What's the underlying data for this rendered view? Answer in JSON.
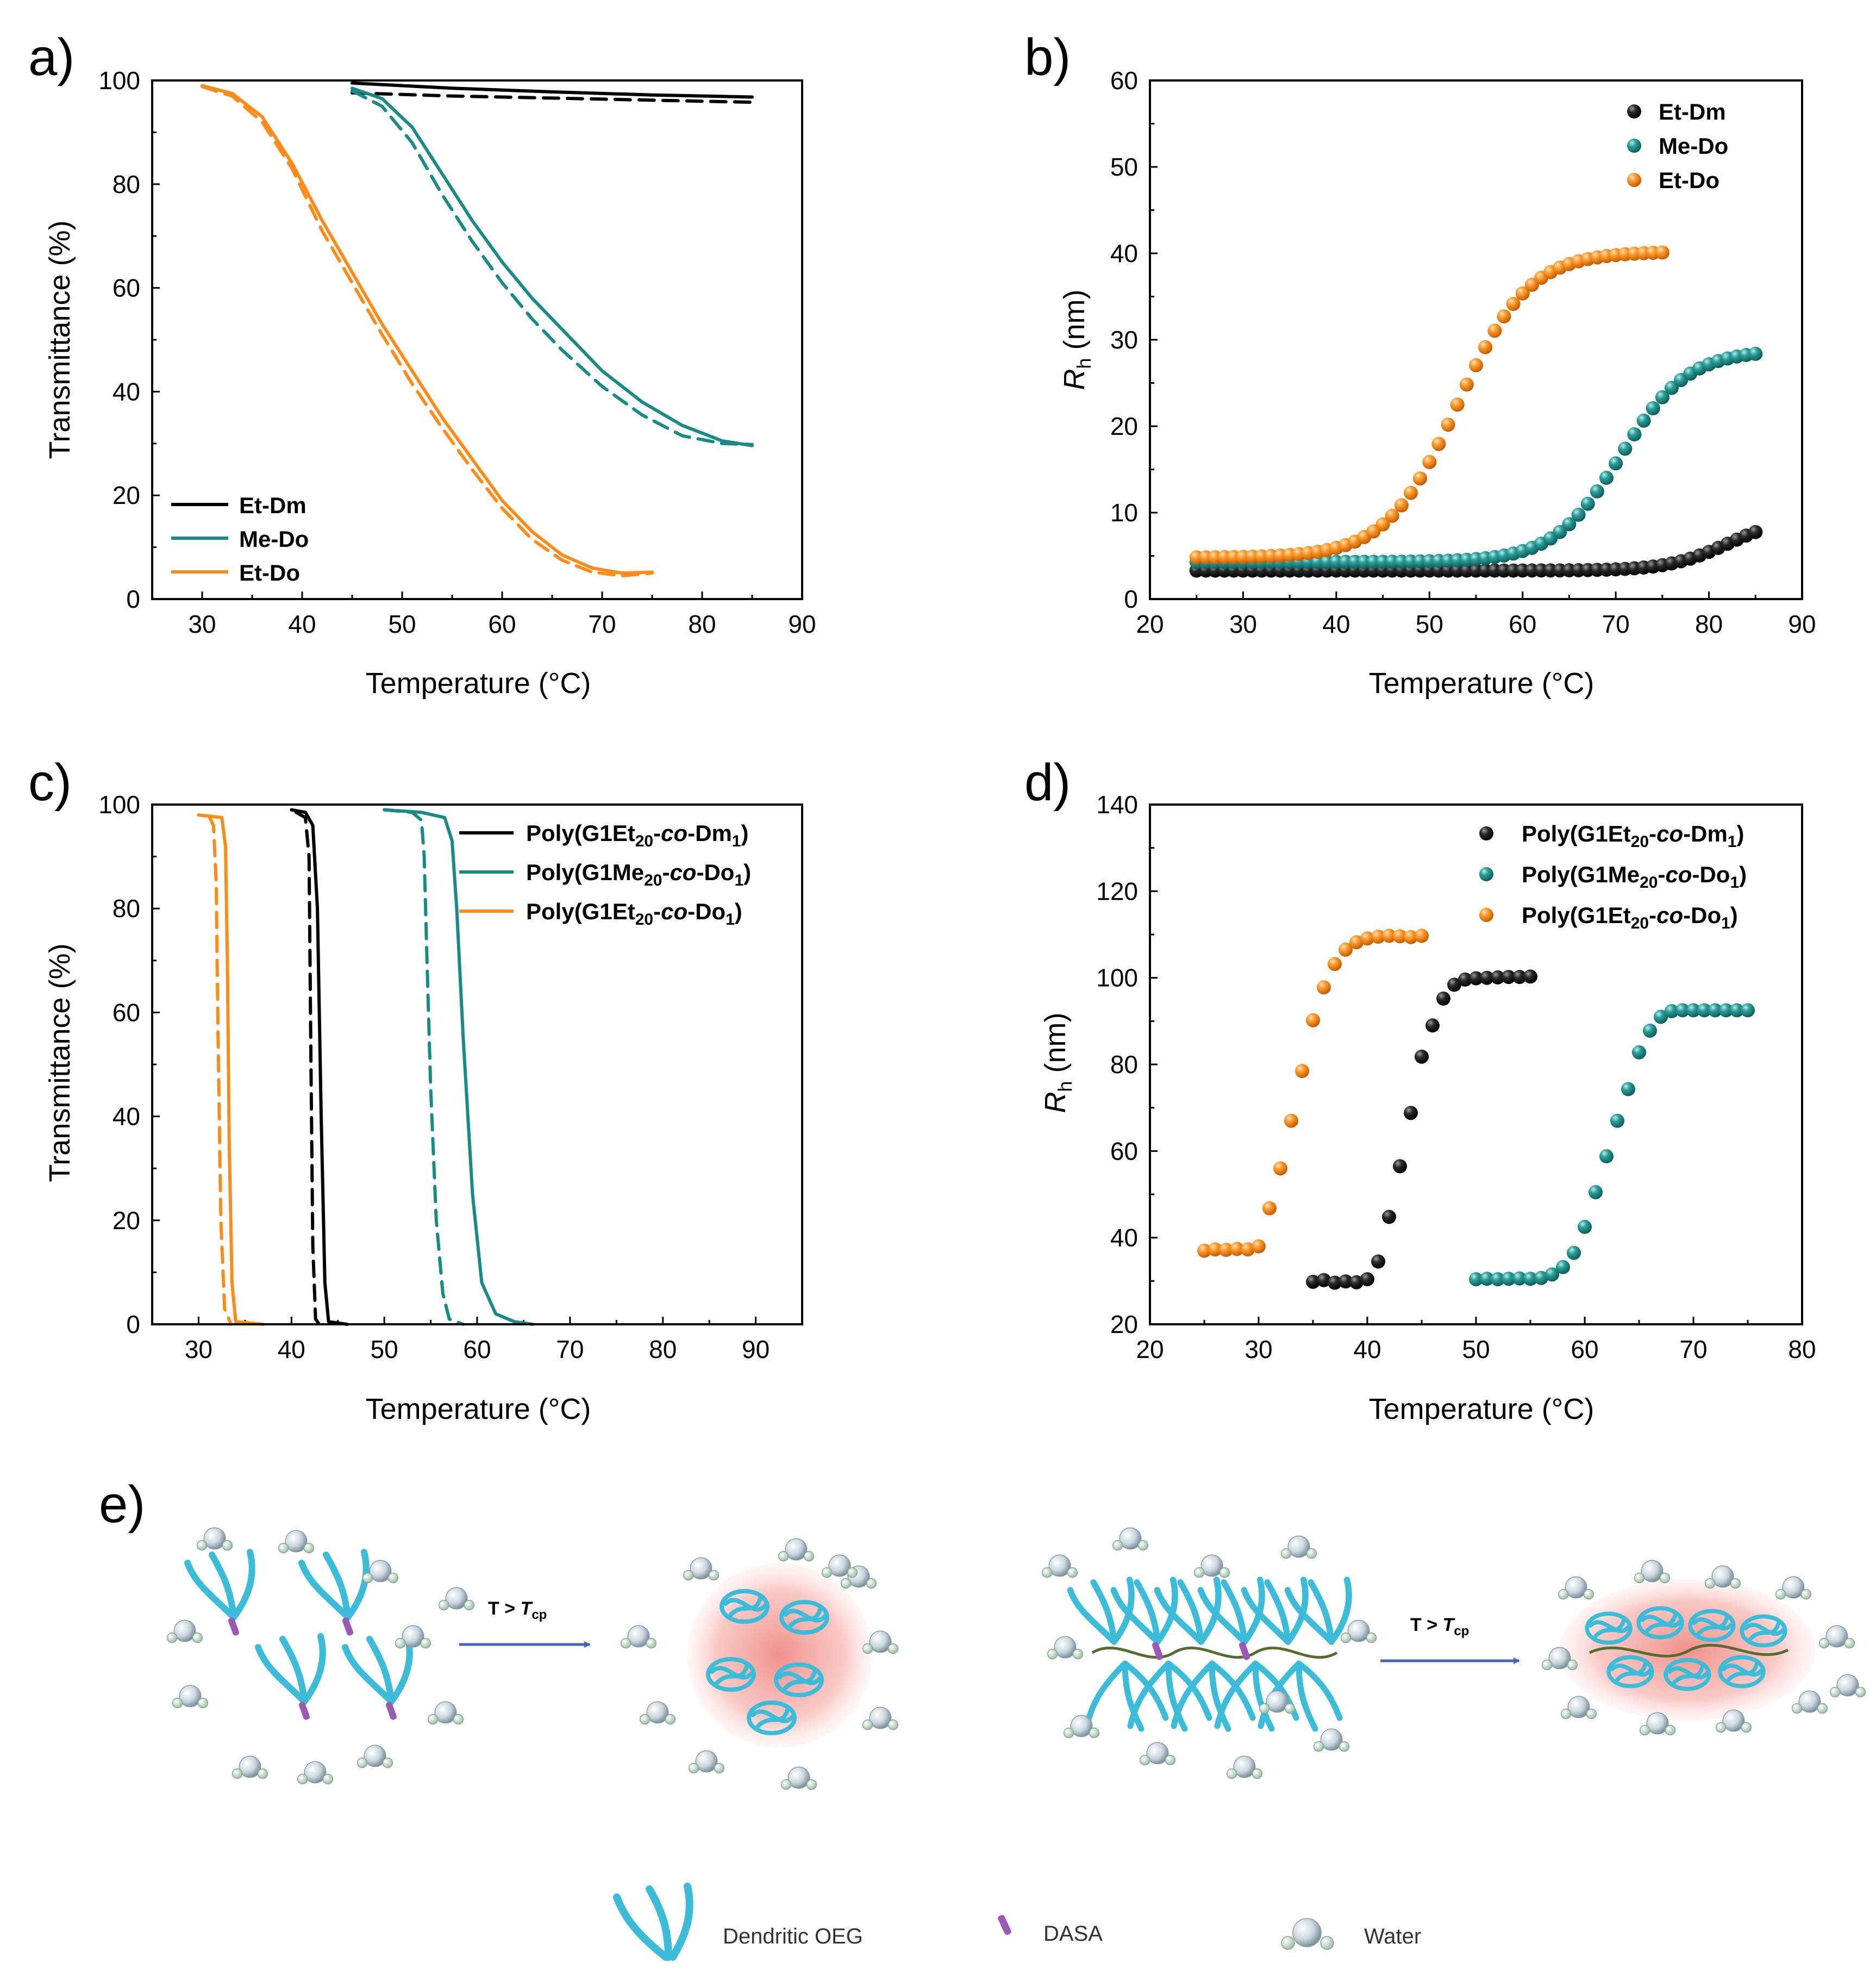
{
  "colors": {
    "black": "#000000",
    "teal": "#1a8a86",
    "orange": "#ff8c1a",
    "blue_arrow": "#4a62b8",
    "cyan": "#3cbcd8",
    "dasa": "#9b59b6",
    "glow": "#f4a3a0"
  },
  "chart_data": [
    {
      "panel": "a)",
      "type": "line",
      "xlabel": "Temperature (°C)",
      "ylabel": "Transmittance (%)",
      "xlim": [
        25,
        90
      ],
      "ylim": [
        0,
        100
      ],
      "xticks": [
        30,
        40,
        50,
        60,
        70,
        80,
        90
      ],
      "yticks": [
        0,
        20,
        40,
        60,
        80,
        100
      ],
      "legend_position": "bottom-left",
      "series": [
        {
          "name": "Et-Dm",
          "color": "black",
          "style": "solid",
          "x": [
            45,
            55,
            65,
            75,
            85
          ],
          "y": [
            99.5,
            98.5,
            97.8,
            97.2,
            96.8
          ]
        },
        {
          "name": "Et-Dm",
          "color": "black",
          "style": "dashed",
          "legend": false,
          "x": [
            45,
            55,
            65,
            75,
            85
          ],
          "y": [
            97.6,
            97.0,
            96.6,
            96.2,
            95.8
          ]
        },
        {
          "name": "Me-Do",
          "color": "teal",
          "style": "solid",
          "x": [
            45,
            48,
            51,
            54,
            57,
            60,
            63,
            66,
            70,
            74,
            78,
            82,
            85
          ],
          "y": [
            98.5,
            96.5,
            91,
            82,
            73,
            65,
            58,
            52,
            44,
            38,
            33.5,
            30.5,
            29.6
          ]
        },
        {
          "name": "Me-Do",
          "color": "teal",
          "style": "dashed",
          "legend": false,
          "x": [
            45,
            48,
            51,
            54,
            57,
            60,
            63,
            66,
            70,
            74,
            78,
            82,
            85
          ],
          "y": [
            98,
            95,
            88,
            78,
            69,
            61,
            54,
            48,
            41,
            35.5,
            31.5,
            30,
            29.8
          ]
        },
        {
          "name": "Et-Do",
          "color": "orange",
          "style": "solid",
          "x": [
            30,
            33,
            36,
            39,
            42,
            45,
            48,
            51,
            54,
            57,
            60,
            63,
            66,
            69,
            72,
            75
          ],
          "y": [
            99,
            97.5,
            93,
            84,
            73,
            63,
            53,
            44,
            35,
            27,
            19,
            13,
            8.5,
            6,
            5,
            5.2
          ]
        },
        {
          "name": "Et-Do",
          "color": "orange",
          "style": "dashed",
          "legend": false,
          "x": [
            30,
            33,
            36,
            39,
            42,
            45,
            48,
            51,
            54,
            57,
            60,
            63,
            66,
            69,
            72,
            75
          ],
          "y": [
            98.8,
            97,
            92,
            83,
            71,
            61,
            51,
            41.5,
            33,
            25,
            17.5,
            11.5,
            7.5,
            5.2,
            4.5,
            5
          ]
        }
      ]
    },
    {
      "panel": "b)",
      "type": "scatter",
      "xlabel": "Temperature (°C)",
      "ylabel": "Rh (nm)",
      "xlim": [
        20,
        90
      ],
      "ylim": [
        0,
        60
      ],
      "xticks": [
        20,
        30,
        40,
        50,
        60,
        70,
        80,
        90
      ],
      "yticks": [
        0,
        10,
        20,
        30,
        40,
        50,
        60
      ],
      "legend_position": "top-right",
      "series": [
        {
          "name": "Et-Dm",
          "color": "black",
          "model": "sigmoid",
          "x_start": 25,
          "x_end": 85,
          "step": 1,
          "low": 3.3,
          "high": 9.5,
          "mid": 82,
          "width": 3.2
        },
        {
          "name": "Me-Do",
          "color": "teal",
          "model": "sigmoid",
          "x_start": 25,
          "x_end": 85,
          "step": 1,
          "low": 4.3,
          "high": 28.8,
          "mid": 70.5,
          "width": 3.6
        },
        {
          "name": "Et-Do",
          "color": "orange",
          "model": "sigmoid",
          "x_start": 25,
          "x_end": 75,
          "step": 1,
          "low": 4.8,
          "high": 40.2,
          "mid": 53,
          "width": 3.8
        }
      ]
    },
    {
      "panel": "c)",
      "type": "line",
      "xlabel": "Temperature (°C)",
      "ylabel": "Transmittance (%)",
      "xlim": [
        25,
        95
      ],
      "ylim": [
        0,
        100
      ],
      "xticks": [
        30,
        40,
        50,
        60,
        70,
        80,
        90
      ],
      "yticks": [
        0,
        20,
        40,
        60,
        80,
        100
      ],
      "legend_position": "top-right",
      "series": [
        {
          "name": "Poly(G1Et20-co-Dm1)",
          "color": "black",
          "style": "solid",
          "x": [
            40,
            41.5,
            42.3,
            42.8,
            43.2,
            43.6,
            44,
            46
          ],
          "y": [
            99,
            98.5,
            96,
            80,
            40,
            8,
            0.5,
            0
          ]
        },
        {
          "name": "Poly(G1Et20-co-Dm1)",
          "color": "black",
          "style": "dashed",
          "legend": false,
          "x": [
            40.5,
            41.5,
            41.9,
            42.1,
            42.3,
            42.6,
            43
          ],
          "y": [
            98.5,
            97.5,
            90,
            50,
            15,
            1,
            0
          ]
        },
        {
          "name": "Poly(G1Me20-co-Do1)",
          "color": "teal",
          "style": "solid",
          "x": [
            50,
            54,
            56.5,
            57.3,
            57.8,
            58.5,
            59.5,
            60.5,
            62,
            64,
            66
          ],
          "y": [
            99,
            98.5,
            97.5,
            93,
            80,
            55,
            25,
            8,
            2,
            0.5,
            0
          ]
        },
        {
          "name": "Poly(G1Me20-co-Do1)",
          "color": "teal",
          "style": "dashed",
          "legend": false,
          "x": [
            50,
            53,
            54,
            54.3,
            54.6,
            55,
            55.6,
            56.3,
            57,
            58.5
          ],
          "y": [
            99,
            98.5,
            97,
            90,
            70,
            45,
            20,
            6,
            1,
            0
          ]
        },
        {
          "name": "Poly(G1Et20-co-Do1)",
          "color": "orange",
          "style": "solid",
          "x": [
            30,
            32.5,
            32.9,
            33.1,
            33.3,
            33.6,
            34,
            37
          ],
          "y": [
            98,
            97.5,
            92,
            70,
            35,
            8,
            0.5,
            0
          ]
        },
        {
          "name": "Poly(G1Et20-co-Do1)",
          "color": "orange",
          "style": "dashed",
          "legend": false,
          "x": [
            31.2,
            31.6,
            31.9,
            32.1,
            32.4,
            32.8,
            33.5
          ],
          "y": [
            97.5,
            96,
            85,
            55,
            20,
            3,
            0
          ]
        }
      ]
    },
    {
      "panel": "d)",
      "type": "scatter",
      "xlabel": "Temperature (°C)",
      "ylabel": "Rh (nm)",
      "xlim": [
        20,
        80
      ],
      "ylim": [
        20,
        140
      ],
      "xticks": [
        20,
        30,
        40,
        50,
        60,
        70,
        80
      ],
      "yticks": [
        20,
        40,
        60,
        80,
        100,
        120,
        140
      ],
      "legend_position": "top-right",
      "series": [
        {
          "name": "Poly(G1Et20-co-Dm1)",
          "color": "black",
          "x": [
            35,
            36,
            37,
            38,
            39,
            40,
            41,
            42,
            43,
            44,
            45,
            46,
            47,
            48,
            49,
            50,
            51,
            52,
            53,
            54,
            55
          ],
          "y": [
            29.8,
            30.2,
            29.6,
            29.9,
            29.7,
            30.4,
            34.5,
            44.8,
            56.5,
            68.8,
            81.8,
            89,
            95.2,
            98.4,
            99.6,
            99.9,
            100,
            100.1,
            100.2,
            100.2,
            100.3
          ]
        },
        {
          "name": "Poly(G1Me20-co-Do1)",
          "color": "teal",
          "x": [
            50,
            51,
            52,
            53,
            54,
            55,
            56,
            57,
            58,
            59,
            60,
            61,
            62,
            63,
            64,
            65,
            66,
            67,
            68,
            69,
            70,
            71,
            72,
            73,
            74,
            75
          ],
          "y": [
            30.4,
            30.5,
            30.4,
            30.5,
            30.6,
            30.5,
            30.7,
            31.5,
            33.2,
            36.5,
            42.5,
            50.5,
            58.8,
            67,
            74.3,
            82.8,
            87.8,
            91,
            92.3,
            92.5,
            92.5,
            92.5,
            92.5,
            92.5,
            92.5,
            92.5
          ]
        },
        {
          "name": "Poly(G1Et20-co-Do1)",
          "color": "orange",
          "x": [
            25,
            26,
            27,
            28,
            29,
            30,
            31,
            32,
            33,
            34,
            35,
            36,
            37,
            38,
            39,
            40,
            41,
            42,
            43,
            44,
            45
          ],
          "y": [
            37,
            37.3,
            37.2,
            37.4,
            37.3,
            38,
            46.8,
            56,
            67,
            78.5,
            90.2,
            97.8,
            103.2,
            106.5,
            108.2,
            109.1,
            109.5,
            109.7,
            109.6,
            109.4,
            109.7
          ]
        }
      ]
    }
  ],
  "panels": {
    "a": {
      "label": "a)",
      "xlabel": "Temperature (°C)",
      "ylabel": "Transmittance (%)",
      "legend": [
        "Et-Dm",
        "Me-Do",
        "Et-Do"
      ]
    },
    "b": {
      "label": "b)",
      "xlabel": "Temperature (°C)",
      "ylabel_main": "R",
      "ylabel_sub": "h",
      "ylabel_unit": " (nm)",
      "legend": [
        "Et-Dm",
        "Me-Do",
        "Et-Do"
      ]
    },
    "c": {
      "label": "c)",
      "xlabel": "Temperature (°C)",
      "ylabel": "Transmittance (%)"
    },
    "d": {
      "label": "d)",
      "xlabel": "Temperature (°C)",
      "ylabel_main": "R",
      "ylabel_sub": "h",
      "ylabel_unit": " (nm)"
    },
    "e": {
      "label": "e)"
    }
  },
  "poly_legend": [
    {
      "prefix": "Poly(G1Et",
      "sub1": "20",
      "mid": "-",
      "co": "co",
      "dash2": "-",
      "suffix": "Dm",
      "sub2": "1",
      "close": ")"
    },
    {
      "prefix": "Poly(G1Me",
      "sub1": "20",
      "mid": "-",
      "co": "co",
      "dash2": "-",
      "suffix": "Do",
      "sub2": "1",
      "close": ")"
    },
    {
      "prefix": "Poly(G1Et",
      "sub1": "20",
      "mid": "-",
      "co": "co",
      "dash2": "-",
      "suffix": "Do",
      "sub2": "1",
      "close": ")"
    }
  ],
  "schematic": {
    "arrow_label_main": "T > ",
    "arrow_label_italic": "T",
    "arrow_label_sub": "cp",
    "legend": {
      "oeg": "Dendritic OEG",
      "dasa": "DASA",
      "water": "Water"
    }
  }
}
